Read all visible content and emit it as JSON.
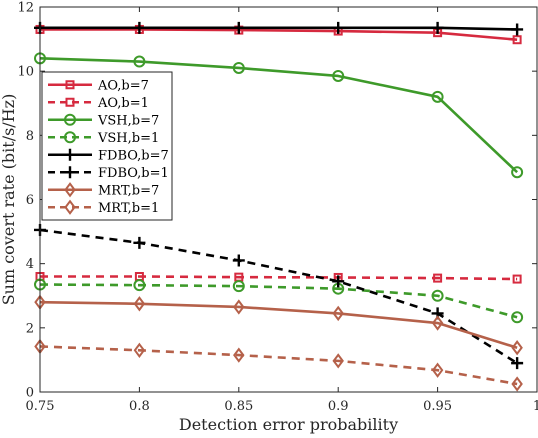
{
  "chart_data": {
    "type": "line",
    "xlabel": "Detection error probability",
    "ylabel": "Sum covert rate (bit/s/Hz)",
    "xlim": [
      0.75,
      1.0
    ],
    "ylim": [
      0,
      12
    ],
    "xticks": [
      0.75,
      0.8,
      0.85,
      0.9,
      0.95,
      1
    ],
    "xtick_labels": [
      "0.75",
      "0.8",
      "0.85",
      "0.9",
      "0.95",
      "1"
    ],
    "yticks": [
      0,
      2,
      4,
      6,
      8,
      10,
      12
    ],
    "ytick_labels": [
      "0",
      "2",
      "4",
      "6",
      "8",
      "10",
      "12"
    ],
    "grid": false,
    "legend_position": "top-left",
    "x": [
      0.75,
      0.8,
      0.85,
      0.9,
      0.95,
      0.99
    ],
    "series": [
      {
        "name": "AO,b=7",
        "color": "#d62a3f",
        "dash": "solid",
        "marker": "square",
        "values": [
          11.3,
          11.3,
          11.28,
          11.25,
          11.2,
          10.98
        ]
      },
      {
        "name": "AO,b=1",
        "color": "#d62a3f",
        "dash": "dashed",
        "marker": "square",
        "values": [
          3.6,
          3.6,
          3.58,
          3.57,
          3.55,
          3.52
        ]
      },
      {
        "name": "VSH,b=7",
        "color": "#3e9a2a",
        "dash": "solid",
        "marker": "circle",
        "values": [
          10.4,
          10.3,
          10.1,
          9.85,
          9.2,
          6.85
        ]
      },
      {
        "name": "VSH,b=1",
        "color": "#3e9a2a",
        "dash": "dashed",
        "marker": "circle",
        "values": [
          3.35,
          3.33,
          3.3,
          3.22,
          3.0,
          2.33
        ]
      },
      {
        "name": "FDBO,b=7",
        "color": "#000000",
        "dash": "solid",
        "marker": "plus",
        "values": [
          11.35,
          11.35,
          11.35,
          11.35,
          11.35,
          11.3
        ]
      },
      {
        "name": "FDBO,b=1",
        "color": "#000000",
        "dash": "dashed",
        "marker": "plus",
        "values": [
          5.05,
          4.65,
          4.1,
          3.45,
          2.45,
          0.9
        ]
      },
      {
        "name": "MRT,b=7",
        "color": "#b5614a",
        "dash": "solid",
        "marker": "diamond",
        "values": [
          2.8,
          2.75,
          2.65,
          2.45,
          2.15,
          1.38
        ]
      },
      {
        "name": "MRT,b=1",
        "color": "#b5614a",
        "dash": "dashed",
        "marker": "diamond",
        "values": [
          1.42,
          1.3,
          1.15,
          0.97,
          0.68,
          0.25
        ]
      }
    ]
  }
}
